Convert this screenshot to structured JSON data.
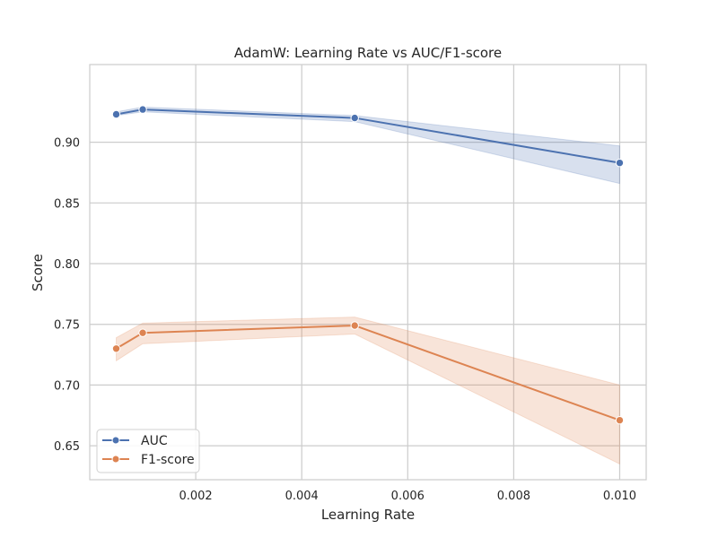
{
  "chart_data": {
    "type": "line",
    "title": "AdamW: Learning Rate vs AUC/F1-score",
    "xlabel": "Learning Rate",
    "ylabel": "Score",
    "xlim": [
      0.0,
      0.0105
    ],
    "ylim": [
      0.622,
      0.964
    ],
    "x_ticks": [
      "0.002",
      "0.004",
      "0.006",
      "0.008",
      "0.010"
    ],
    "y_ticks": [
      "0.65",
      "0.70",
      "0.75",
      "0.80",
      "0.85",
      "0.90"
    ],
    "grid": true,
    "legend_position": "lower-left",
    "x": [
      0.0005,
      0.001,
      0.005,
      0.01
    ],
    "series": [
      {
        "name": "AUC",
        "color": "#4c72b0",
        "marker": "circle",
        "values": [
          0.923,
          0.927,
          0.92,
          0.883
        ],
        "ci_lower": [
          0.922,
          0.925,
          0.917,
          0.866
        ],
        "ci_upper": [
          0.925,
          0.929,
          0.922,
          0.897
        ]
      },
      {
        "name": "F1-score",
        "color": "#dd8452",
        "marker": "circle",
        "values": [
          0.73,
          0.743,
          0.749,
          0.671
        ],
        "ci_lower": [
          0.72,
          0.734,
          0.742,
          0.635
        ],
        "ci_upper": [
          0.739,
          0.751,
          0.756,
          0.7
        ]
      }
    ]
  }
}
